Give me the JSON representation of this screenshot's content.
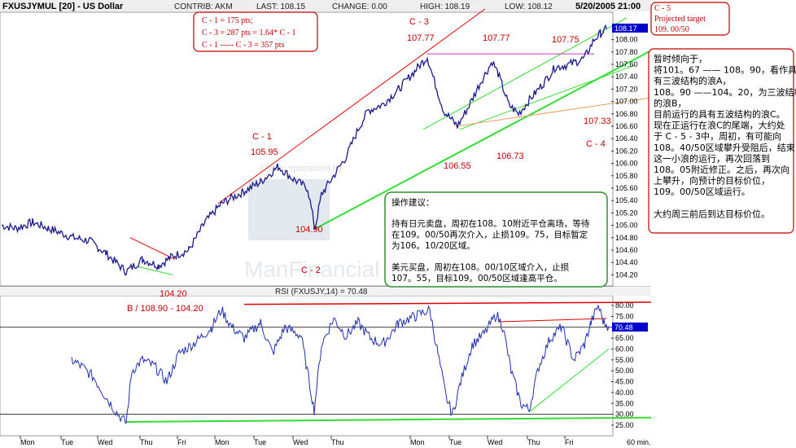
{
  "header": {
    "symbol": "FXUSJYMUL [20] - US Dollar",
    "contrib": "CONTRIB: AKM",
    "last": "LAST: 108.15",
    "change": "CHANGE: 0.00",
    "high": "HIGH: 108.19",
    "low": "LOW: 108.12",
    "datetime": "5/20/2005 21:00"
  },
  "chart_data": [
    {
      "type": "line",
      "title": "FXUSJYMUL [20] - US Dollar",
      "yticks": [
        "104.20",
        "104.40",
        "104.60",
        "104.80",
        "105.00",
        "105.20",
        "105.40",
        "105.60",
        "105.80",
        "106.00",
        "106.20",
        "106.40",
        "106.60",
        "106.80",
        "107.00",
        "107.20",
        "107.40",
        "107.60",
        "107.80",
        "108.00",
        "108.17"
      ],
      "ylim": [
        104.1,
        108.35
      ],
      "xticks": [
        "Mon",
        "Tue",
        "Wed",
        "Thu",
        "Fri",
        "Mon",
        "Tue",
        "Wed",
        "Thu",
        "Mon",
        "Tue",
        "Wed",
        "Thu",
        "Fri",
        "60 min."
      ],
      "current_value": "108.17",
      "annotations": {
        "c1": "C - 1",
        "c1_value": "105.95",
        "c2": "C - 2",
        "c2_value": "104.90",
        "c3": "C - 3",
        "c3_value": "107.77",
        "c4": "C - 4",
        "peak_2": "107.77",
        "peak_3": "107.75",
        "level_107_33": "107.33",
        "low_106_55": "106.55",
        "low_106_73": "106.73",
        "low_104_20": "104.20"
      },
      "watermark": "Charts sponsored by",
      "watermark_brand": "ManFinancial"
    },
    {
      "type": "line",
      "title": "RSI (FXUSJY,14) = 70.48",
      "yticks": [
        "25.00",
        "30.00",
        "35.00",
        "40.00",
        "45.00",
        "50.00",
        "55.00",
        "60.00",
        "65.00",
        "70.00",
        "75.00",
        "80.00"
      ],
      "ylim": [
        22,
        83
      ],
      "current_value": "70.48",
      "label_b": "B / 108.90 - 104.20"
    }
  ],
  "boxes": {
    "calc": [
      "C - 1 = 175 pts;",
      "C - 3 = 287 pts = 1.64* C - 1",
      "C - 1 ----- C - 3 = 357 pts"
    ],
    "target": [
      "C - 5",
      "Projected target",
      "109. 00/50"
    ]
  },
  "analysis": [
    "暂时倾向于，",
    "将101。67 —— 108。90，看作具",
    "有三波结构的浪A，",
    "108。90 ——104。20，为三波结构",
    "的浪B，",
    "目前运行的具有五波结构的浪C。",
    "现在正运行在浪C的尾端，大约处",
    "于 C - 5 - 3中，周初，有可能向",
    "108。40/50区域攀升受阻后，结束",
    "这一小浪的运行，再次回落到",
    "108。05附近修正。之后，再次向",
    "上攀升，向预计的目标价位，",
    "109。00/50区域运行。",
    "",
    "大约周三前后到达目标价位。"
  ],
  "advice": {
    "title": "操作建议：",
    "lines": [
      "持有日元卖盘，周初在108。10附近平仓离场，等待",
      "在109。00/50再次介入，止损109。75，目标暂定",
      "为106。10/20区域。",
      "",
      "美元买盘，周初在108。00/10区域介入，止损",
      "107。55，目标109。00/50区域逢高平仓。"
    ]
  },
  "colors": {
    "price_line": "#1a1a8a",
    "rsi_line": "#1f2fb0",
    "trend_red": "#e00000",
    "trend_green": "#33dd33",
    "trend_orange": "#e8a060",
    "magenta": "#cc33cc",
    "box_border": "#c00000",
    "advice_border": "#2f8f2f",
    "value_flag": "#0000cc"
  }
}
